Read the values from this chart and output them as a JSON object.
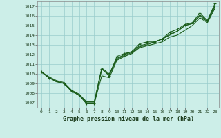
{
  "title": "Graphe pression niveau de la mer (hPa)",
  "background_color": "#cceee8",
  "grid_color": "#99cccc",
  "line_color": "#1a5c1a",
  "xlim": [
    -0.5,
    23.5
  ],
  "ylim": [
    1006.5,
    1017.5
  ],
  "xticks": [
    0,
    1,
    2,
    3,
    4,
    5,
    6,
    7,
    8,
    9,
    10,
    11,
    12,
    13,
    14,
    15,
    16,
    17,
    18,
    19,
    20,
    21,
    22,
    23
  ],
  "yticks": [
    1007,
    1008,
    1009,
    1010,
    1011,
    1012,
    1013,
    1014,
    1015,
    1016,
    1017
  ],
  "series": [
    [
      1010.2,
      1009.6,
      1009.2,
      1009.0,
      1008.2,
      1007.8,
      1006.9,
      1006.9,
      1009.8,
      1009.6,
      1011.4,
      1011.8,
      1012.1,
      1012.7,
      1012.9,
      1013.1,
      1013.3,
      1013.8,
      1014.0,
      1014.5,
      1015.0,
      1015.8,
      1015.3,
      1016.8
    ],
    [
      1010.2,
      1009.6,
      1009.2,
      1009.0,
      1008.2,
      1007.8,
      1007.0,
      1007.0,
      1010.5,
      1009.9,
      1011.5,
      1011.9,
      1012.2,
      1012.8,
      1013.0,
      1013.3,
      1013.6,
      1014.0,
      1014.4,
      1015.0,
      1015.2,
      1016.0,
      1015.4,
      1017.0
    ],
    [
      1010.2,
      1009.7,
      1009.3,
      1009.1,
      1008.3,
      1007.9,
      1007.1,
      1007.1,
      1010.6,
      1010.0,
      1011.6,
      1012.0,
      1012.3,
      1012.9,
      1013.1,
      1013.3,
      1013.6,
      1014.1,
      1014.4,
      1015.0,
      1015.2,
      1016.1,
      1015.5,
      1017.1
    ],
    [
      1010.2,
      1009.6,
      1009.2,
      1009.0,
      1008.2,
      1007.8,
      1006.9,
      1006.9,
      1010.5,
      1009.8,
      1011.8,
      1012.1,
      1012.3,
      1013.1,
      1013.3,
      1013.3,
      1013.6,
      1014.3,
      1014.6,
      1015.1,
      1015.3,
      1016.3,
      1015.5,
      1017.3
    ]
  ],
  "marker_series_idx": 3,
  "marker_x": [
    0,
    1,
    2,
    3,
    4,
    5,
    6,
    7,
    8,
    9,
    10,
    11,
    12,
    13,
    14,
    15,
    16,
    17,
    18,
    19,
    20,
    21,
    22,
    23
  ]
}
